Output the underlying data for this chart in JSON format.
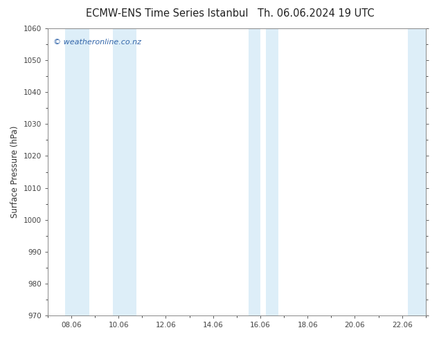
{
  "title_left": "ECMW-ENS Time Series Istanbul",
  "title_right": "Th. 06.06.2024 19 UTC",
  "ylabel": "Surface Pressure (hPa)",
  "ylim": [
    970,
    1060
  ],
  "yticks": [
    970,
    980,
    990,
    1000,
    1010,
    1020,
    1030,
    1040,
    1050,
    1060
  ],
  "x_min": 7.0,
  "x_max": 23.0,
  "xtick_positions": [
    8,
    10,
    12,
    14,
    16,
    18,
    20,
    22
  ],
  "xtick_labels": [
    "08.06",
    "10.06",
    "12.06",
    "14.06",
    "16.06",
    "18.06",
    "20.06",
    "22.06"
  ],
  "background_color": "#ffffff",
  "plot_bg_color": "#ffffff",
  "shaded_bands": [
    {
      "x_start": 7.75,
      "x_end": 8.75
    },
    {
      "x_start": 9.75,
      "x_end": 10.75
    },
    {
      "x_start": 15.5,
      "x_end": 16.0
    },
    {
      "x_start": 16.25,
      "x_end": 16.75
    },
    {
      "x_start": 22.25,
      "x_end": 23.0
    }
  ],
  "band_color": "#ddeef8",
  "watermark_text": "© weatheronline.co.nz",
  "watermark_color": "#3366aa",
  "watermark_fontsize": 8,
  "title_fontsize": 10.5,
  "tick_fontsize": 7.5,
  "ylabel_fontsize": 8.5,
  "spine_color": "#888888",
  "tick_color": "#444444"
}
